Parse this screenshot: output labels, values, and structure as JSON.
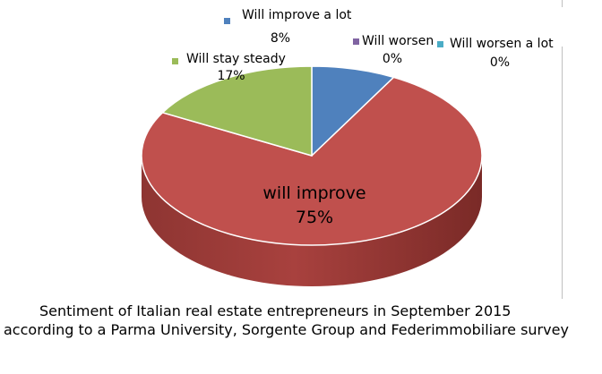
{
  "chart_data": {
    "type": "pie",
    "style": "3d",
    "slices": [
      {
        "label": "Will improve a lot",
        "value": 8,
        "display": "8%",
        "color": "#4f81bd"
      },
      {
        "label": "will improve",
        "value": 75,
        "display": "75%",
        "color": "#c0504d"
      },
      {
        "label": "Will stay steady",
        "value": 17,
        "display": "17%",
        "color": "#9bbb59"
      },
      {
        "label": "Will worsen",
        "value": 0,
        "display": "0%",
        "color": "#8064a2"
      },
      {
        "label": "Will worsen a lot",
        "value": 0,
        "display": "0%",
        "color": "#4bacc6"
      }
    ]
  },
  "caption": {
    "line1": "Sentiment of Italian real estate entrepreneurs in September 2015",
    "line2": "according to a Parma University, Sorgente Group and Federimmobiliare survey"
  }
}
